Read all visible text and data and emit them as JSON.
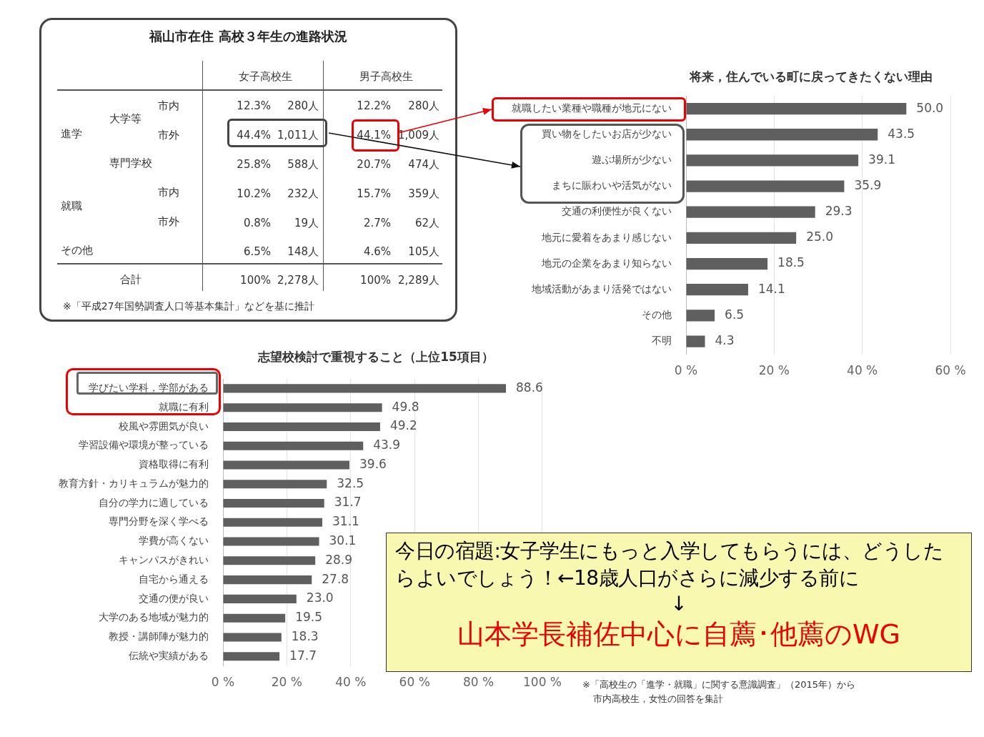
{
  "chart_data": [
    {
      "type": "other",
      "title": "福山市在住 高校３年生の進路状況",
      "annotations": [
        "女子高校生",
        "男子高校生",
        "進学",
        "大学等",
        "市内",
        "市外",
        "専門学校",
        "就職",
        "市内",
        "市外",
        "その他",
        "合計",
        "12.3%",
        "280人",
        "12.2%",
        "280人",
        "44.4%",
        "1,011人",
        "44.1%",
        "1,009人",
        "25.8%",
        "588人",
        "20.7%",
        "474人",
        "10.2%",
        "232人",
        "15.7%",
        "359人",
        "0.8%",
        "19人",
        "2.7%",
        "62人",
        "6.5%",
        "148人",
        "4.6%",
        "105人",
        "100%",
        "2,278人",
        "100%",
        "2,289人",
        "※「平成27年国勢調査人口等基本集計」などを基に推計"
      ]
    },
    {
      "type": "bar",
      "orientation": "horizontal",
      "title": "将来，住んでいる町に戻ってきたくない理由",
      "categories": [
        "就職したい業種や職種が地元にない",
        "買い物をしたいお店が少ない",
        "遊ぶ場所が少ない",
        "まちに賑わいや活気がない",
        "交通の利便性が良くない",
        "地元に愛着をあまり感じない",
        "地元の企業をあまり知らない",
        "地域活動があまり活発ではない",
        "その他",
        "不明"
      ],
      "values": [
        50.0,
        43.5,
        39.1,
        35.9,
        29.3,
        25.0,
        18.5,
        14.1,
        6.5,
        4.3
      ],
      "value_labels": [
        "50.0",
        "43.5",
        "39.1",
        "35.9",
        "29.3",
        "25.0",
        "18.5",
        "14.1",
        "6.5",
        "4.3"
      ],
      "color": "#5f5f5f",
      "xlim": [
        0,
        60
      ],
      "xticks": [
        {
          "value": 0,
          "label": "0 %"
        },
        {
          "value": 20,
          "label": "20 %"
        },
        {
          "value": 40,
          "label": "40 %"
        },
        {
          "value": 60,
          "label": "60 %"
        }
      ],
      "grid": "x"
    },
    {
      "type": "bar",
      "orientation": "horizontal",
      "title": "志望校検討で重視すること（上位15項目）",
      "categories": [
        "学びたい学科，学部がある",
        "就職に有利",
        "校風や雰囲気が良い",
        "学習設備や環境が整っている",
        "資格取得に有利",
        "教育方針・カリキュラムが魅力的",
        "自分の学力に適している",
        "専門分野を深く学べる",
        "学費が高くない",
        "キャンパスがきれい",
        "自宅から通える",
        "交通の便が良い",
        "大学のある地域が魅力的",
        "教授・講師陣が魅力的",
        "伝統や実績がある"
      ],
      "values": [
        88.6,
        49.8,
        49.2,
        43.9,
        39.6,
        32.5,
        31.7,
        31.1,
        30.1,
        28.9,
        27.8,
        23.0,
        19.5,
        18.3,
        17.7
      ],
      "value_labels": [
        "88.6",
        "49.8",
        "49.2",
        "43.9",
        "39.6",
        "32.5",
        "31.7",
        "31.1",
        "30.1",
        "28.9",
        "27.8",
        "23.0",
        "19.5",
        "18.3",
        "17.7"
      ],
      "color": "#5f5f5f",
      "xlim": [
        0,
        100
      ],
      "xticks": [
        {
          "value": 0,
          "label": "0 %"
        },
        {
          "value": 20,
          "label": "20 %"
        },
        {
          "value": 40,
          "label": "40 %"
        },
        {
          "value": 60,
          "label": "60 %"
        },
        {
          "value": 80,
          "label": "80 %"
        },
        {
          "value": 100,
          "label": "100 %"
        }
      ],
      "grid": "x",
      "annotations": [
        "※「高校生の「進学・就職」に関する意識調査」（2015年）から",
        "市内高校生，女性の回答を集計"
      ]
    },
    {
      "type": "other",
      "annotations": [
        "今日の宿題:女子学生にもっと入学してもらうには、どうしたらよいでしょう！←18歳人口がさらに減少する前に",
        "↓",
        "山本学長補佐中心に自薦･他薦のWG"
      ]
    }
  ]
}
